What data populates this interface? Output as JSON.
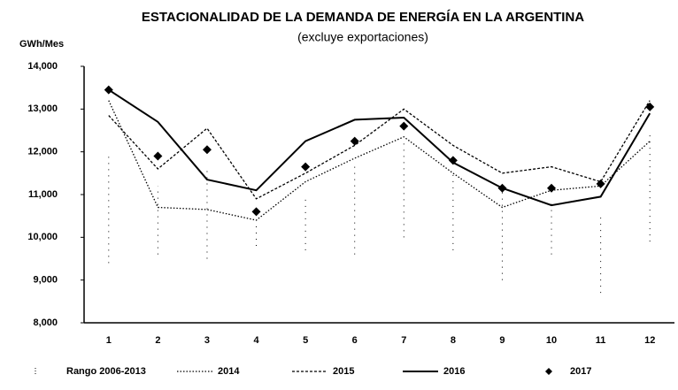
{
  "chart_data": {
    "type": "line",
    "title": "ESTACIONALIDAD DE LA DEMANDA DE ENERGÍA EN LA ARGENTINA",
    "subtitle": "(excluye exportaciones)",
    "y_label": "GWh/Mes",
    "categories": [
      "1",
      "2",
      "3",
      "4",
      "5",
      "6",
      "7",
      "8",
      "9",
      "10",
      "11",
      "12"
    ],
    "ylim": [
      8000,
      14000
    ],
    "yticks": [
      {
        "value": 8000,
        "label": "8,000"
      },
      {
        "value": 9000,
        "label": "9,000"
      },
      {
        "value": 10000,
        "label": "10,000"
      },
      {
        "value": 11000,
        "label": "11,000"
      },
      {
        "value": 12000,
        "label": "12,000"
      },
      {
        "value": 13000,
        "label": "13,000"
      },
      {
        "value": 14000,
        "label": "14,000"
      }
    ],
    "series": [
      {
        "name": "Rango 2006-2013",
        "color": "#000000",
        "style": "range",
        "low": [
          9400,
          9600,
          9500,
          9800,
          9700,
          9600,
          10000,
          9700,
          9000,
          9600,
          8700,
          9900
        ],
        "high": [
          12000,
          11200,
          11600,
          10300,
          11000,
          11700,
          12200,
          11500,
          11100,
          10800,
          10500,
          12400
        ]
      },
      {
        "name": "2014",
        "color": "#000000",
        "style": "dotted",
        "values": [
          13200,
          10700,
          10650,
          10400,
          11300,
          11850,
          12350,
          11500,
          10700,
          11100,
          11200,
          12250
        ]
      },
      {
        "name": "2015",
        "color": "#000000",
        "style": "dashed",
        "values": [
          12850,
          11600,
          12550,
          10900,
          11500,
          12150,
          13000,
          12150,
          11500,
          11650,
          11300,
          13200
        ]
      },
      {
        "name": "2016",
        "color": "#000000",
        "style": "solid",
        "values": [
          13450,
          12700,
          11350,
          11100,
          12250,
          12750,
          12800,
          11750,
          11150,
          10750,
          10950,
          12900
        ]
      },
      {
        "name": "2017",
        "color": "#000000",
        "style": "marker",
        "values": [
          13450,
          11900,
          12050,
          10600,
          11650,
          12250,
          12600,
          11800,
          11150,
          11150,
          11250,
          13050
        ]
      }
    ]
  }
}
